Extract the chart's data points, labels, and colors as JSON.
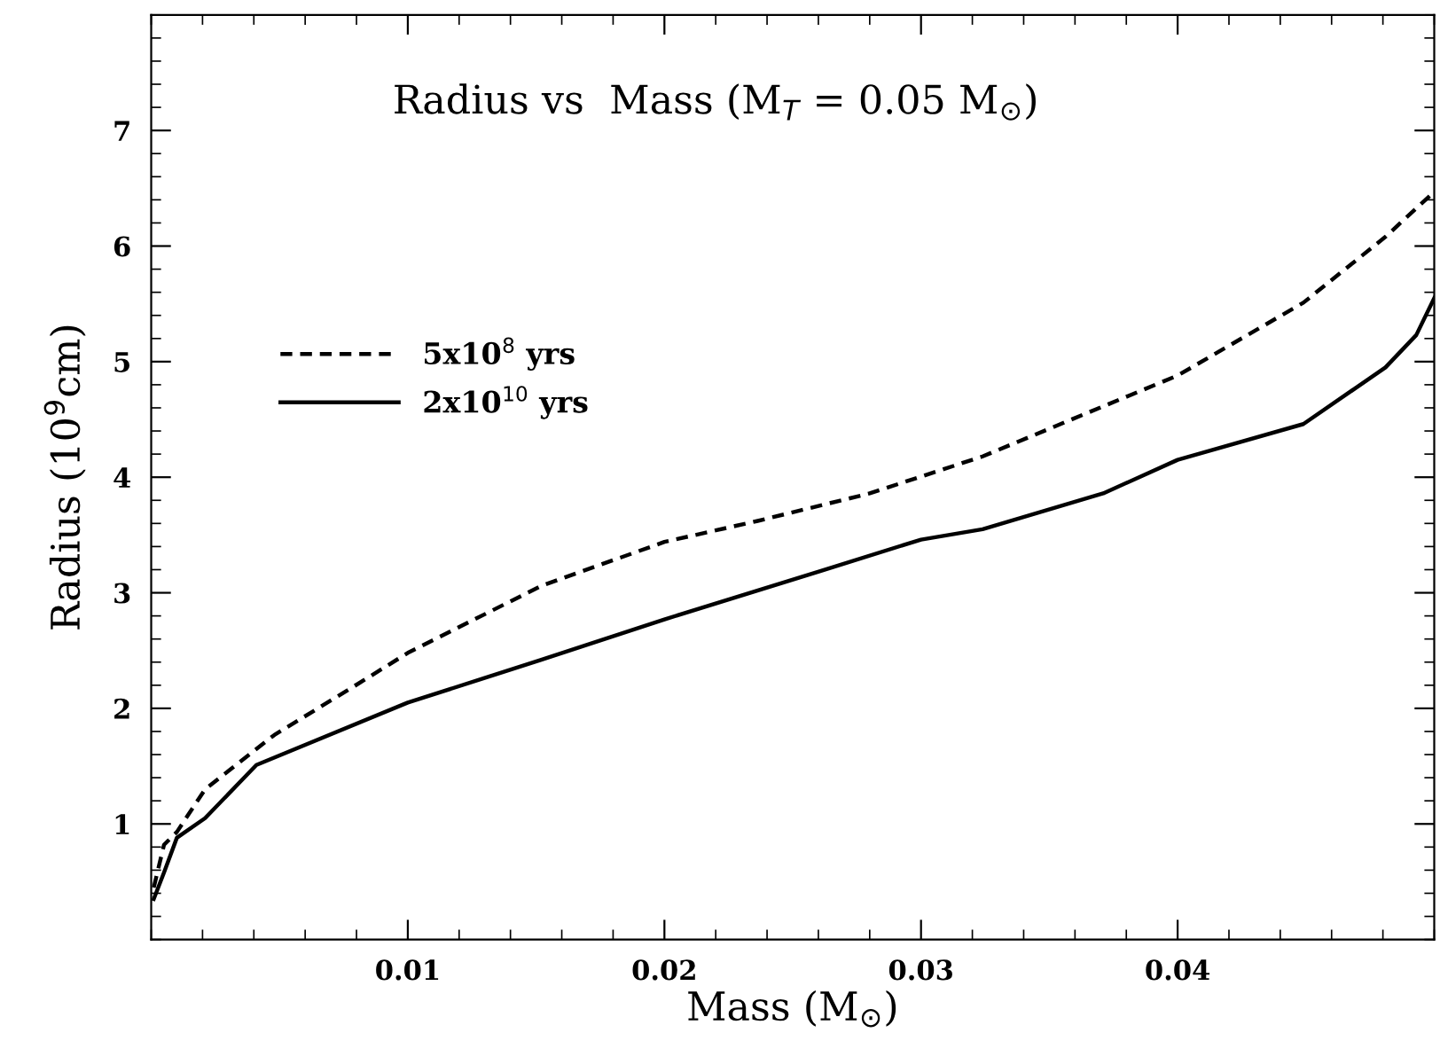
{
  "chart_data": {
    "type": "line",
    "title": "Radius vs  Mass (M$_{T}$ = 0.05 M$_{⊙}$)",
    "xlabel": "Mass (M$_{⊙}$)",
    "ylabel": "Radius (10$^{9}$cm)",
    "xlim": [
      0,
      0.05
    ],
    "ylim": [
      0,
      8
    ],
    "xticks": [
      0.01,
      0.02,
      0.03,
      0.04
    ],
    "yticks": [
      1,
      2,
      3,
      4,
      5,
      6,
      7
    ],
    "grid": false,
    "legend": "top left",
    "series": [
      {
        "name": "5x10$^{8}$ yrs",
        "color": "#000000",
        "line_style": "dashed",
        "x": [
          0.0001,
          0.0005,
          0.001,
          0.0021,
          0.0048,
          0.0079,
          0.01,
          0.0152,
          0.02,
          0.0236,
          0.028,
          0.0324,
          0.04,
          0.0449,
          0.0481,
          0.05
        ],
        "values": [
          0.45,
          0.82,
          0.93,
          1.3,
          1.77,
          2.19,
          2.48,
          3.06,
          3.44,
          3.62,
          3.86,
          4.18,
          4.88,
          5.51,
          6.08,
          6.47
        ]
      },
      {
        "name": "2x10$^{10}$ yrs",
        "color": "#000000",
        "line_style": "solid",
        "x": [
          0.0001,
          0.0005,
          0.001,
          0.0021,
          0.0041,
          0.01,
          0.0152,
          0.02,
          0.0261,
          0.03,
          0.0324,
          0.0371,
          0.04,
          0.0449,
          0.0481,
          0.0493,
          0.05
        ],
        "values": [
          0.35,
          0.58,
          0.88,
          1.05,
          1.51,
          2.05,
          2.42,
          2.77,
          3.19,
          3.46,
          3.55,
          3.86,
          4.15,
          4.46,
          4.95,
          5.23,
          5.55
        ]
      }
    ]
  }
}
